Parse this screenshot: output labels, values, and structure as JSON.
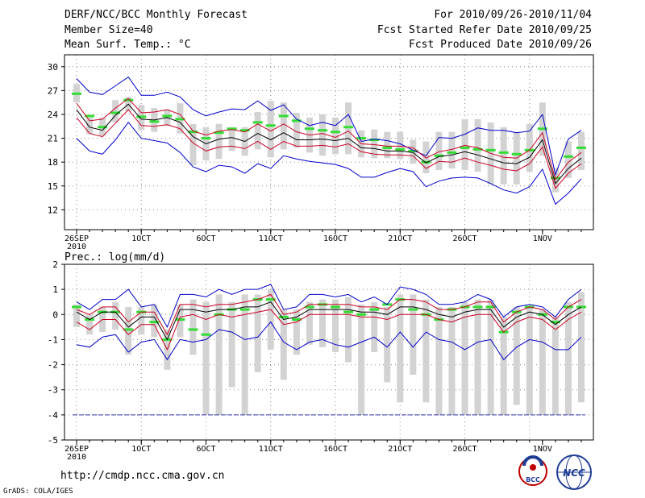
{
  "header": {
    "title": "DERF/NCC/BCC Monthly Forecast",
    "member_size": "Member Size=40",
    "variable": "Mean Surf. Temp.: °C",
    "for_period": "For 2010/09/26-2010/11/04",
    "start_date": "Fcst Started Refer Date 2010/09/25",
    "produced_date": "Fcst Produced Date 2010/09/26"
  },
  "footer": {
    "url": "http://cmdp.ncc.cma.gov.cn",
    "grads": "GrADS: COLA/IGES",
    "logo_bcc": "BCC",
    "logo_ncc": "NCC"
  },
  "colors": {
    "spread_bar": "#d3d3d3",
    "mode_marker": "#33dd33",
    "envelope_outer": "#0000cc",
    "envelope_inner": "#cc0022",
    "ensemble_mean": "#000000",
    "threshold_line": "#3333aa",
    "grid": "#888888"
  },
  "chart_data": [
    {
      "type": "line",
      "title": "Mean Surf. Temp.: °C",
      "x": [
        1,
        2,
        3,
        4,
        5,
        6,
        7,
        8,
        9,
        10,
        11,
        12,
        13,
        14,
        15,
        16,
        17,
        18,
        19,
        20,
        21,
        22,
        23,
        24,
        25,
        26,
        27,
        28,
        29,
        30,
        31,
        32,
        33,
        34,
        35,
        36,
        37,
        38,
        39,
        40
      ],
      "xticks": [
        {
          "day": 1,
          "label": "26SEP"
        },
        {
          "day": 6,
          "label": "1OCT"
        },
        {
          "day": 11,
          "label": "6OCT"
        },
        {
          "day": 16,
          "label": "11OCT"
        },
        {
          "day": 21,
          "label": "16OCT"
        },
        {
          "day": 26,
          "label": "21OCT"
        },
        {
          "day": 31,
          "label": "26OCT"
        },
        {
          "day": 37,
          "label": "1NOV"
        }
      ],
      "year_label": "2010",
      "yticks": [
        12,
        15,
        18,
        21,
        24,
        27,
        30
      ],
      "ylim": [
        9.5,
        31.5
      ],
      "series": [
        {
          "name": "max",
          "values": [
            28.5,
            26.8,
            26.5,
            27.6,
            28.7,
            26.4,
            26.4,
            26.8,
            26.2,
            24.6,
            23.8,
            24.3,
            24.7,
            24.6,
            25.7,
            24.5,
            25.2,
            23.4,
            22.6,
            23.0,
            22.6,
            24.0,
            20.6,
            20.9,
            20.7,
            20.3,
            19.5,
            18.8,
            21.1,
            21.0,
            21.5,
            22.3,
            22.0,
            22.0,
            21.7,
            21.9,
            24.0,
            16.4,
            20.9,
            22.0
          ]
        },
        {
          "name": "upper",
          "values": [
            25.4,
            23.2,
            23.4,
            24.8,
            26.0,
            24.2,
            24.3,
            24.6,
            24.0,
            21.9,
            21.4,
            21.9,
            22.1,
            21.8,
            22.8,
            21.9,
            22.8,
            21.8,
            21.4,
            21.6,
            21.1,
            21.9,
            20.3,
            20.2,
            20.0,
            20.0,
            19.8,
            18.5,
            19.3,
            19.6,
            20.1,
            19.8,
            19.1,
            18.6,
            18.5,
            19.5,
            21.7,
            15.8,
            18.0,
            19.2
          ]
        },
        {
          "name": "mean",
          "values": [
            24.6,
            22.4,
            22.0,
            23.9,
            25.3,
            23.4,
            23.3,
            23.6,
            23.0,
            21.2,
            20.3,
            20.9,
            21.1,
            20.6,
            21.6,
            20.8,
            21.7,
            20.8,
            20.8,
            20.9,
            20.7,
            21.0,
            19.8,
            19.7,
            19.4,
            19.4,
            19.2,
            17.9,
            18.7,
            18.9,
            19.3,
            18.9,
            18.4,
            17.9,
            17.8,
            18.6,
            20.8,
            15.3,
            17.2,
            18.5
          ]
        },
        {
          "name": "lower",
          "values": [
            23.6,
            21.6,
            21.2,
            22.9,
            24.6,
            22.6,
            22.5,
            22.7,
            22.2,
            20.4,
            19.4,
            19.9,
            20.0,
            19.7,
            20.6,
            19.6,
            20.6,
            20.0,
            20.0,
            20.1,
            19.9,
            20.3,
            19.3,
            19.0,
            18.9,
            18.9,
            18.8,
            17.2,
            18.1,
            18.0,
            18.5,
            18.0,
            17.6,
            17.1,
            16.9,
            17.8,
            19.9,
            14.7,
            16.6,
            17.8
          ]
        },
        {
          "name": "min",
          "values": [
            21.0,
            19.4,
            19.0,
            20.8,
            23.0,
            21.0,
            20.7,
            20.4,
            19.2,
            17.4,
            16.8,
            17.6,
            17.4,
            16.6,
            17.8,
            17.2,
            18.8,
            18.4,
            18.1,
            17.9,
            17.7,
            17.2,
            16.1,
            16.1,
            16.7,
            17.2,
            16.8,
            14.9,
            15.6,
            16.0,
            16.1,
            16.0,
            15.3,
            14.5,
            14.1,
            14.9,
            17.1,
            12.7,
            14.1,
            15.9
          ]
        },
        {
          "name": "spread_top",
          "values": [
            27.8,
            23.6,
            23.6,
            25.8,
            26.2,
            25.2,
            24.8,
            24.6,
            25.4,
            22.8,
            22.4,
            22.8,
            22.0,
            22.4,
            24.3,
            25.7,
            25.5,
            24.2,
            23.6,
            24.0,
            23.6,
            25.5,
            22.0,
            22.1,
            21.8,
            21.8,
            20.8,
            20.6,
            21.8,
            21.8,
            23.4,
            23.4,
            23.0,
            22.4,
            21.8,
            22.8,
            25.5,
            17.3,
            20.6,
            21.8
          ]
        },
        {
          "name": "spread_bottom",
          "values": [
            25.5,
            21.5,
            21.3,
            23.0,
            24.4,
            22.0,
            21.8,
            22.6,
            21.6,
            17.6,
            18.2,
            18.4,
            19.4,
            18.8,
            19.6,
            18.6,
            19.6,
            19.8,
            19.2,
            18.8,
            19.0,
            19.0,
            18.6,
            18.5,
            18.5,
            18.4,
            17.8,
            16.6,
            17.0,
            17.2,
            17.0,
            16.8,
            15.2,
            15.2,
            15.2,
            16.8,
            18.8,
            14.2,
            16.0,
            17.0
          ]
        },
        {
          "name": "mode",
          "values": [
            26.6,
            23.8,
            22.4,
            24.2,
            25.8,
            23.7,
            23.1,
            23.8,
            23.4,
            21.8,
            21.0,
            21.7,
            22.2,
            22.0,
            23.0,
            22.6,
            23.8,
            23.2,
            22.2,
            22.0,
            21.8,
            22.4,
            21.0,
            20.8,
            19.8,
            19.6,
            19.4,
            18.0,
            18.8,
            19.2,
            19.8,
            19.6,
            19.5,
            19.2,
            19.0,
            19.5,
            22.2,
            16.0,
            18.7,
            19.8
          ]
        }
      ]
    },
    {
      "type": "line",
      "title": "Prec.: log(mm/d)",
      "x": [
        1,
        2,
        3,
        4,
        5,
        6,
        7,
        8,
        9,
        10,
        11,
        12,
        13,
        14,
        15,
        16,
        17,
        18,
        19,
        20,
        21,
        22,
        23,
        24,
        25,
        26,
        27,
        28,
        29,
        30,
        31,
        32,
        33,
        34,
        35,
        36,
        37,
        38,
        39,
        40
      ],
      "xticks": [
        {
          "day": 1,
          "label": "26SEP"
        },
        {
          "day": 6,
          "label": "1OCT"
        },
        {
          "day": 11,
          "label": "6OCT"
        },
        {
          "day": 16,
          "label": "11OCT"
        },
        {
          "day": 21,
          "label": "16OCT"
        },
        {
          "day": 26,
          "label": "21OCT"
        },
        {
          "day": 31,
          "label": "26OCT"
        },
        {
          "day": 37,
          "label": "1NOV"
        }
      ],
      "year_label": "2010",
      "yticks": [
        -5,
        -4,
        -3,
        -2,
        -1,
        0,
        1,
        2
      ],
      "ylim": [
        -5,
        2
      ],
      "threshold": -4,
      "series": [
        {
          "name": "max",
          "values": [
            0.5,
            0.2,
            0.6,
            0.6,
            1.0,
            0.3,
            0.4,
            -0.5,
            0.8,
            0.8,
            0.7,
            1.0,
            0.8,
            1.0,
            1.0,
            1.2,
            0.2,
            0.3,
            0.8,
            0.8,
            0.7,
            0.8,
            0.5,
            0.7,
            0.4,
            1.1,
            1.0,
            0.8,
            0.4,
            0.4,
            0.5,
            0.8,
            0.6,
            -0.1,
            0.3,
            0.4,
            0.3,
            -0.1,
            0.6,
            1.0
          ]
        },
        {
          "name": "upper",
          "values": [
            0.2,
            0.0,
            0.3,
            0.3,
            -0.3,
            0.1,
            0.1,
            -0.8,
            0.4,
            0.4,
            0.3,
            0.4,
            0.4,
            0.5,
            0.6,
            0.8,
            0.0,
            0.1,
            0.4,
            0.4,
            0.4,
            0.4,
            0.3,
            0.3,
            0.2,
            0.6,
            0.6,
            0.5,
            0.2,
            0.2,
            0.3,
            0.5,
            0.5,
            -0.3,
            0.1,
            0.3,
            0.2,
            -0.2,
            0.3,
            0.6
          ]
        },
        {
          "name": "mean",
          "values": [
            0.1,
            -0.2,
            0.1,
            0.1,
            -0.5,
            -0.1,
            -0.1,
            -1.0,
            0.2,
            0.2,
            0.1,
            0.2,
            0.2,
            0.3,
            0.3,
            0.5,
            -0.2,
            -0.1,
            0.2,
            0.2,
            0.2,
            0.2,
            0.1,
            0.1,
            0.0,
            0.3,
            0.3,
            0.2,
            0.0,
            -0.1,
            0.1,
            0.2,
            0.2,
            -0.5,
            -0.1,
            0.1,
            0.0,
            -0.4,
            0.0,
            0.3
          ]
        },
        {
          "name": "lower",
          "values": [
            -0.3,
            -0.6,
            -0.2,
            -0.2,
            -0.8,
            -0.4,
            -0.4,
            -1.4,
            -0.1,
            0.0,
            -0.2,
            0.0,
            -0.1,
            0.0,
            0.1,
            0.2,
            -0.4,
            -0.3,
            0.0,
            0.0,
            0.0,
            0.0,
            -0.1,
            -0.1,
            -0.2,
            0.0,
            0.0,
            0.0,
            -0.2,
            -0.3,
            -0.1,
            0.0,
            0.0,
            -0.7,
            -0.3,
            -0.1,
            -0.2,
            -0.6,
            -0.2,
            0.1
          ]
        },
        {
          "name": "min",
          "values": [
            -1.2,
            -1.3,
            -0.9,
            -0.8,
            -1.5,
            -1.1,
            -1.0,
            -1.8,
            -1.0,
            -1.1,
            -1.0,
            -0.6,
            -0.7,
            -1.0,
            -0.9,
            -0.3,
            -1.1,
            -1.4,
            -1.1,
            -1.0,
            -1.2,
            -1.3,
            -1.1,
            -0.9,
            -1.3,
            -0.7,
            -1.3,
            -0.7,
            -1.0,
            -1.1,
            -1.4,
            -1.1,
            -1.0,
            -1.8,
            -1.3,
            -1.0,
            -1.1,
            -1.4,
            -1.4,
            -0.9
          ]
        },
        {
          "name": "spread_top",
          "values": [
            0.4,
            0.0,
            0.3,
            0.5,
            0.3,
            0.3,
            0.4,
            -0.6,
            0.4,
            0.6,
            0.5,
            0.8,
            0.5,
            0.8,
            0.8,
            1.0,
            0.2,
            0.2,
            0.5,
            0.6,
            0.6,
            0.7,
            0.4,
            0.5,
            0.3,
            0.8,
            0.8,
            0.6,
            0.3,
            0.3,
            0.5,
            0.6,
            0.6,
            -0.1,
            0.3,
            0.3,
            0.2,
            -0.1,
            0.5,
            0.9
          ]
        },
        {
          "name": "spread_bottom",
          "values": [
            -0.5,
            -0.8,
            -0.7,
            -0.6,
            -1.6,
            -0.8,
            -0.9,
            -2.2,
            -0.9,
            -1.6,
            -4.0,
            -4.0,
            -2.9,
            -4.0,
            -2.3,
            -1.4,
            -2.6,
            -1.6,
            -1.2,
            -1.3,
            -1.5,
            -1.9,
            -4.0,
            -1.5,
            -2.7,
            -3.5,
            -2.4,
            -3.5,
            -4.0,
            -4.0,
            -4.0,
            -4.0,
            -4.0,
            -4.0,
            -3.6,
            -4.0,
            -4.0,
            -4.0,
            -4.0,
            -3.5
          ]
        },
        {
          "name": "mode",
          "values": [
            0.3,
            -0.2,
            0.1,
            0.1,
            -0.6,
            0.1,
            -0.3,
            -1.0,
            -0.2,
            -0.6,
            -0.8,
            0.0,
            0.2,
            0.2,
            0.6,
            0.6,
            -0.1,
            -0.2,
            0.3,
            0.4,
            0.3,
            0.1,
            0.0,
            0.2,
            0.4,
            0.6,
            0.2,
            0.0,
            -0.2,
            0.2,
            0.3,
            0.3,
            0.3,
            -0.7,
            0.1,
            0.3,
            0.0,
            -0.3,
            0.3,
            0.3
          ]
        }
      ]
    }
  ]
}
